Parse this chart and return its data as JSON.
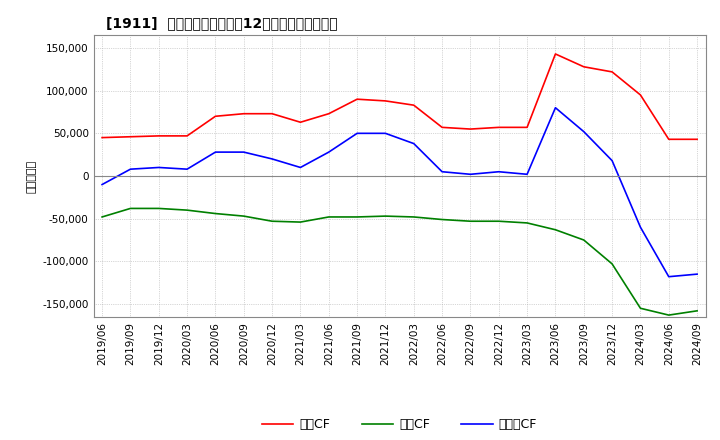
{
  "title": "[1911]  キャッシュフローの12か月移動合計の推移",
  "ylabel": "（百万円）",
  "ylim": [
    -165000,
    165000
  ],
  "yticks": [
    -150000,
    -100000,
    -50000,
    0,
    50000,
    100000,
    150000
  ],
  "background_color": "#ffffff",
  "grid_color": "#b0b0b0",
  "dates": [
    "2019/06",
    "2019/09",
    "2019/12",
    "2020/03",
    "2020/06",
    "2020/09",
    "2020/12",
    "2021/03",
    "2021/06",
    "2021/09",
    "2021/12",
    "2022/03",
    "2022/06",
    "2022/09",
    "2022/12",
    "2023/03",
    "2023/06",
    "2023/09",
    "2023/12",
    "2024/03",
    "2024/06",
    "2024/09"
  ],
  "operating_cf": [
    45000,
    46000,
    47000,
    47000,
    70000,
    73000,
    73000,
    63000,
    73000,
    90000,
    88000,
    83000,
    57000,
    55000,
    57000,
    57000,
    143000,
    128000,
    122000,
    95000,
    43000,
    43000
  ],
  "investing_cf": [
    -48000,
    -38000,
    -38000,
    -40000,
    -44000,
    -47000,
    -53000,
    -54000,
    -48000,
    -48000,
    -47000,
    -48000,
    -51000,
    -53000,
    -53000,
    -55000,
    -63000,
    -75000,
    -103000,
    -155000,
    -163000,
    -158000
  ],
  "free_cf": [
    -10000,
    8000,
    10000,
    8000,
    28000,
    28000,
    20000,
    10000,
    28000,
    50000,
    50000,
    38000,
    5000,
    2000,
    5000,
    2000,
    80000,
    52000,
    18000,
    -60000,
    -118000,
    -115000
  ],
  "operating_color": "#ff0000",
  "investing_color": "#008000",
  "free_color": "#0000ff",
  "legend_labels": [
    "営業CF",
    "投資CF",
    "フリーCF"
  ]
}
